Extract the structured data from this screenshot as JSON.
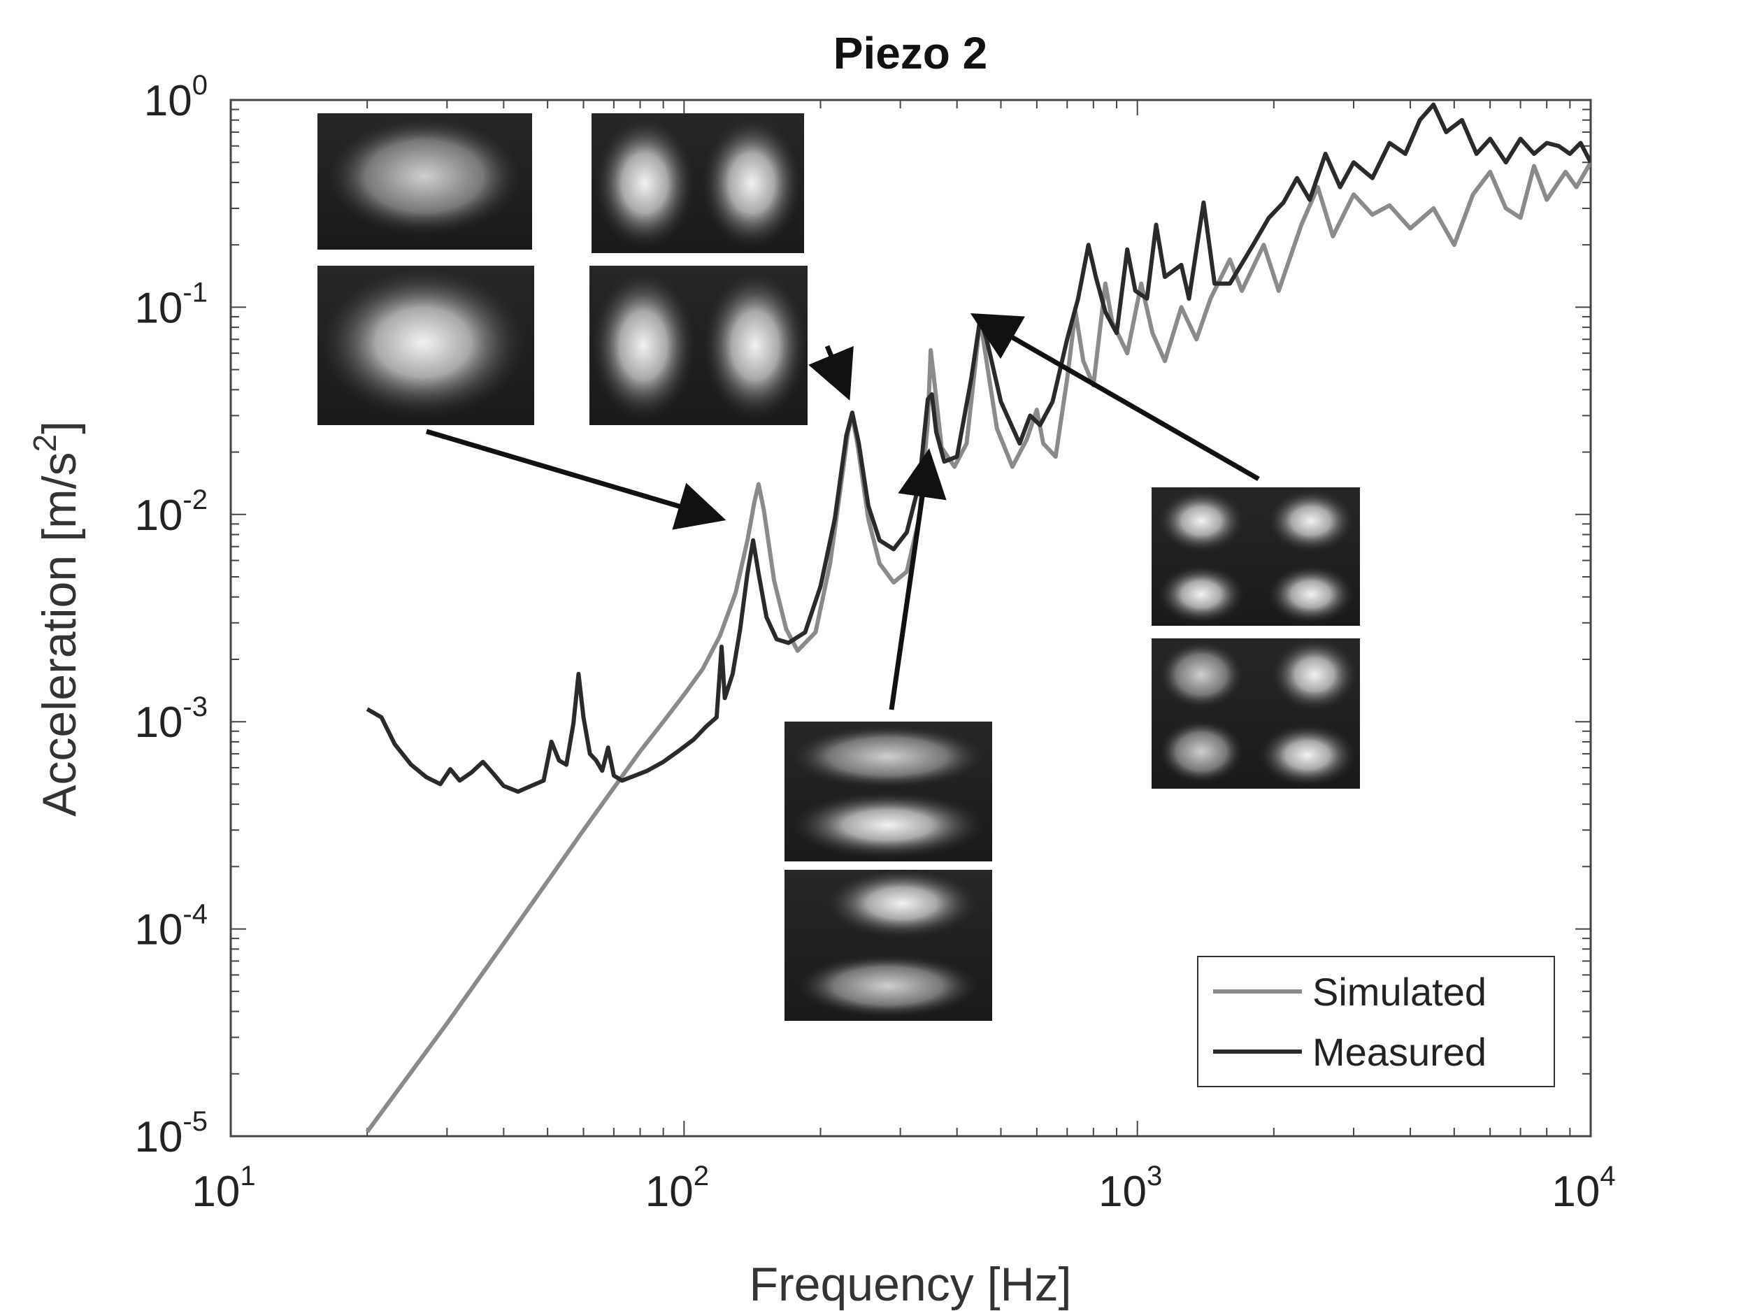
{
  "chart_data": {
    "type": "line",
    "title": "Piezo 2",
    "xlabel": "Frequency [Hz]",
    "ylabel": "Acceleration [m/s",
    "ylabel_exp": "2",
    "ylabel_end": "]",
    "xscale": "log",
    "yscale": "log",
    "xlim": [
      10,
      10000
    ],
    "ylim": [
      1e-05,
      1
    ],
    "x_ticks": [
      {
        "base": "10",
        "exp": "1"
      },
      {
        "base": "10",
        "exp": "2"
      },
      {
        "base": "10",
        "exp": "3"
      },
      {
        "base": "10",
        "exp": "4"
      }
    ],
    "y_ticks": [
      {
        "base": "10",
        "exp": "0"
      },
      {
        "base": "10",
        "exp": "-1"
      },
      {
        "base": "10",
        "exp": "-2"
      },
      {
        "base": "10",
        "exp": "-3"
      },
      {
        "base": "10",
        "exp": "-4"
      },
      {
        "base": "10",
        "exp": "-5"
      }
    ],
    "legend_position": "bottom-right",
    "series": [
      {
        "name": "Simulated",
        "color": "#8a8a8a",
        "points": [
          [
            20,
            1.05e-05
          ],
          [
            30,
            3.5e-05
          ],
          [
            40,
            8.5e-05
          ],
          [
            50,
            0.00017
          ],
          [
            60,
            0.0003
          ],
          [
            70,
            0.00048
          ],
          [
            80,
            0.00072
          ],
          [
            90,
            0.001
          ],
          [
            100,
            0.00135
          ],
          [
            110,
            0.0018
          ],
          [
            120,
            0.0026
          ],
          [
            130,
            0.0042
          ],
          [
            138,
            0.0075
          ],
          [
            143,
            0.0115
          ],
          [
            146,
            0.014
          ],
          [
            150,
            0.0105
          ],
          [
            158,
            0.0048
          ],
          [
            168,
            0.0028
          ],
          [
            178,
            0.0022
          ],
          [
            195,
            0.0027
          ],
          [
            210,
            0.0058
          ],
          [
            222,
            0.014
          ],
          [
            230,
            0.025
          ],
          [
            235,
            0.03
          ],
          [
            242,
            0.021
          ],
          [
            255,
            0.0095
          ],
          [
            270,
            0.0058
          ],
          [
            290,
            0.0047
          ],
          [
            310,
            0.0053
          ],
          [
            330,
            0.0095
          ],
          [
            345,
            0.028
          ],
          [
            350,
            0.062
          ],
          [
            356,
            0.045
          ],
          [
            370,
            0.021
          ],
          [
            395,
            0.017
          ],
          [
            420,
            0.022
          ],
          [
            440,
            0.055
          ],
          [
            450,
            0.088
          ],
          [
            462,
            0.06
          ],
          [
            490,
            0.026
          ],
          [
            530,
            0.017
          ],
          [
            570,
            0.023
          ],
          [
            600,
            0.032
          ],
          [
            620,
            0.022
          ],
          [
            660,
            0.019
          ],
          [
            700,
            0.045
          ],
          [
            730,
            0.095
          ],
          [
            760,
            0.055
          ],
          [
            800,
            0.042
          ],
          [
            850,
            0.13
          ],
          [
            880,
            0.085
          ],
          [
            950,
            0.06
          ],
          [
            1020,
            0.13
          ],
          [
            1080,
            0.075
          ],
          [
            1150,
            0.055
          ],
          [
            1250,
            0.1
          ],
          [
            1350,
            0.07
          ],
          [
            1450,
            0.11
          ],
          [
            1600,
            0.17
          ],
          [
            1700,
            0.12
          ],
          [
            1900,
            0.2
          ],
          [
            2050,
            0.12
          ],
          [
            2300,
            0.25
          ],
          [
            2500,
            0.38
          ],
          [
            2700,
            0.22
          ],
          [
            3000,
            0.35
          ],
          [
            3300,
            0.28
          ],
          [
            3600,
            0.31
          ],
          [
            4000,
            0.24
          ],
          [
            4500,
            0.3
          ],
          [
            5000,
            0.2
          ],
          [
            5500,
            0.35
          ],
          [
            6000,
            0.45
          ],
          [
            6500,
            0.3
          ],
          [
            7000,
            0.27
          ],
          [
            7500,
            0.48
          ],
          [
            8000,
            0.33
          ],
          [
            8800,
            0.45
          ],
          [
            9300,
            0.38
          ],
          [
            10000,
            0.5
          ]
        ]
      },
      {
        "name": "Measured",
        "color": "#2a2a2a",
        "points": [
          [
            20,
            0.00115
          ],
          [
            21.5,
            0.00105
          ],
          [
            23,
            0.00078
          ],
          [
            25,
            0.00062
          ],
          [
            27,
            0.00054
          ],
          [
            29,
            0.0005
          ],
          [
            30.5,
            0.00059
          ],
          [
            32,
            0.00052
          ],
          [
            34,
            0.00057
          ],
          [
            36,
            0.00064
          ],
          [
            38,
            0.00056
          ],
          [
            40,
            0.00049
          ],
          [
            43,
            0.00046
          ],
          [
            46,
            0.00049
          ],
          [
            49,
            0.00052
          ],
          [
            51,
            0.0008
          ],
          [
            53,
            0.00065
          ],
          [
            55,
            0.00062
          ],
          [
            57,
            0.00098
          ],
          [
            58.5,
            0.0017
          ],
          [
            60,
            0.00105
          ],
          [
            62,
            0.0007
          ],
          [
            64,
            0.00065
          ],
          [
            66,
            0.00058
          ],
          [
            68,
            0.00075
          ],
          [
            70,
            0.00055
          ],
          [
            73,
            0.00052
          ],
          [
            78,
            0.00055
          ],
          [
            83,
            0.00058
          ],
          [
            90,
            0.00064
          ],
          [
            97,
            0.00072
          ],
          [
            105,
            0.00082
          ],
          [
            112,
            0.00095
          ],
          [
            118,
            0.00105
          ],
          [
            121,
            0.0023
          ],
          [
            123,
            0.0013
          ],
          [
            128,
            0.0017
          ],
          [
            133,
            0.0028
          ],
          [
            138,
            0.0052
          ],
          [
            142,
            0.0075
          ],
          [
            146,
            0.0052
          ],
          [
            152,
            0.0032
          ],
          [
            160,
            0.0025
          ],
          [
            170,
            0.0024
          ],
          [
            185,
            0.0027
          ],
          [
            200,
            0.0045
          ],
          [
            215,
            0.0095
          ],
          [
            228,
            0.024
          ],
          [
            235,
            0.031
          ],
          [
            243,
            0.022
          ],
          [
            255,
            0.011
          ],
          [
            270,
            0.0075
          ],
          [
            290,
            0.0068
          ],
          [
            310,
            0.0082
          ],
          [
            330,
            0.014
          ],
          [
            345,
            0.036
          ],
          [
            352,
            0.038
          ],
          [
            360,
            0.025
          ],
          [
            375,
            0.018
          ],
          [
            400,
            0.019
          ],
          [
            430,
            0.045
          ],
          [
            450,
            0.088
          ],
          [
            465,
            0.07
          ],
          [
            500,
            0.035
          ],
          [
            550,
            0.022
          ],
          [
            580,
            0.03
          ],
          [
            610,
            0.027
          ],
          [
            650,
            0.035
          ],
          [
            700,
            0.07
          ],
          [
            740,
            0.11
          ],
          [
            780,
            0.2
          ],
          [
            810,
            0.14
          ],
          [
            850,
            0.095
          ],
          [
            900,
            0.075
          ],
          [
            950,
            0.19
          ],
          [
            990,
            0.12
          ],
          [
            1050,
            0.11
          ],
          [
            1100,
            0.25
          ],
          [
            1150,
            0.14
          ],
          [
            1250,
            0.16
          ],
          [
            1300,
            0.11
          ],
          [
            1400,
            0.32
          ],
          [
            1480,
            0.13
          ],
          [
            1600,
            0.13
          ],
          [
            1800,
            0.2
          ],
          [
            1950,
            0.27
          ],
          [
            2100,
            0.32
          ],
          [
            2250,
            0.42
          ],
          [
            2400,
            0.33
          ],
          [
            2600,
            0.55
          ],
          [
            2800,
            0.38
          ],
          [
            3000,
            0.5
          ],
          [
            3300,
            0.42
          ],
          [
            3600,
            0.62
          ],
          [
            3900,
            0.55
          ],
          [
            4200,
            0.8
          ],
          [
            4500,
            0.95
          ],
          [
            4800,
            0.7
          ],
          [
            5200,
            0.8
          ],
          [
            5600,
            0.55
          ],
          [
            6000,
            0.65
          ],
          [
            6500,
            0.5
          ],
          [
            7000,
            0.65
          ],
          [
            7500,
            0.55
          ],
          [
            8000,
            0.62
          ],
          [
            8500,
            0.6
          ],
          [
            9000,
            0.55
          ],
          [
            9500,
            0.62
          ],
          [
            10000,
            0.5
          ]
        ]
      }
    ],
    "annotations": [
      {
        "label": "mode-shape-1",
        "description": "inset mode shape images",
        "points_to": {
          "x": 135,
          "y": 0.01
        }
      },
      {
        "label": "mode-shape-2",
        "description": "inset mode shape images",
        "points_to": {
          "x": 233,
          "y": 0.032
        }
      },
      {
        "label": "mode-shape-3",
        "description": "inset mode shape images",
        "points_to": {
          "x": 352,
          "y": 0.019
        }
      },
      {
        "label": "mode-shape-4",
        "description": "inset mode shape images",
        "points_to": {
          "x": 450,
          "y": 0.09
        }
      }
    ]
  }
}
